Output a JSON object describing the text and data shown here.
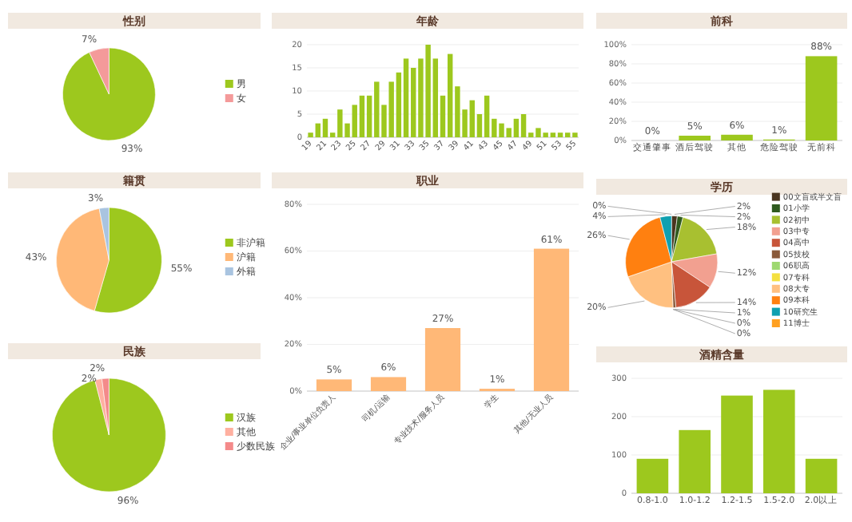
{
  "chart_data": [
    {
      "type": "pie",
      "title": "性别",
      "categories": [
        "男",
        "女"
      ],
      "values": [
        93,
        7
      ],
      "colors": [
        "#9dc81e",
        "#f49a9a"
      ],
      "value_labels": [
        "93%",
        "7%"
      ],
      "legend": "right"
    },
    {
      "type": "bar",
      "title": "年龄",
      "categories": [
        "19",
        null,
        "21",
        null,
        "23",
        null,
        "25",
        null,
        "27",
        null,
        "29",
        null,
        "31",
        null,
        "33",
        null,
        "35",
        null,
        "37",
        null,
        "39",
        null,
        "41",
        null,
        "43",
        null,
        "45",
        null,
        "47",
        null,
        "49",
        null,
        "51",
        null,
        "53",
        null,
        "55"
      ],
      "values": [
        1,
        3,
        4,
        1,
        6,
        3,
        7,
        9,
        9,
        12,
        7,
        12,
        14,
        17,
        15,
        17,
        20,
        17,
        9,
        18,
        11,
        6,
        8,
        5,
        9,
        4,
        3,
        2,
        4,
        5,
        1,
        2,
        1,
        1,
        1,
        1,
        1
      ],
      "color": "#9dc81e",
      "ylim": [
        0,
        20
      ],
      "yticks": [
        0,
        5,
        10,
        15,
        20
      ],
      "grid": "y"
    },
    {
      "type": "bar",
      "title": "前科",
      "categories": [
        "交通肇事",
        "酒后驾驶",
        "其他",
        "危险驾驶",
        "无前科"
      ],
      "values": [
        0,
        5,
        6,
        1,
        88
      ],
      "color": "#9dc81e",
      "value_labels": [
        "0%",
        "5%",
        "6%",
        "1%",
        "88%"
      ],
      "ylim": [
        0,
        100
      ],
      "yticks": [
        {
          "value": 0,
          "label": "0%"
        },
        {
          "value": 20,
          "label": "20%"
        },
        {
          "value": 40,
          "label": "40%"
        },
        {
          "value": 60,
          "label": "60%"
        },
        {
          "value": 80,
          "label": "80%"
        },
        {
          "value": 100,
          "label": "100%"
        }
      ],
      "grid": "y"
    },
    {
      "type": "pie",
      "title": "籍贯",
      "categories": [
        "非沪籍",
        "沪籍",
        "外籍"
      ],
      "values": [
        55,
        43,
        3
      ],
      "colors": [
        "#9dc81e",
        "#ffb877",
        "#a9c4e0"
      ],
      "value_labels": [
        "55%",
        "43%",
        "3%"
      ],
      "legend": "right"
    },
    {
      "type": "bar",
      "title": "职业",
      "categories": [
        "企业/事业单位负责人",
        "司机/运输",
        "专业技术/服务人员",
        "学生",
        "其他/无业人员"
      ],
      "values": [
        5,
        6,
        27,
        1,
        61
      ],
      "color": "#ffb877",
      "value_labels": [
        "5%",
        "6%",
        "27%",
        "1%",
        "61%"
      ],
      "ylim": [
        0,
        80
      ],
      "yticks": [
        {
          "value": 0,
          "label": "0%"
        },
        {
          "value": 20,
          "label": "20%"
        },
        {
          "value": 40,
          "label": "40%"
        },
        {
          "value": 60,
          "label": "60%"
        },
        {
          "value": 80,
          "label": "80%"
        }
      ],
      "grid": "y"
    },
    {
      "type": "pie",
      "title": "学历",
      "categories": [
        "00文盲或半文盲",
        "01小学",
        "02初中",
        "03中专",
        "04高中",
        "05技校",
        "06职高",
        "07专科",
        "08大专",
        "09本科",
        "10研究生",
        "11博士"
      ],
      "values": [
        2,
        2,
        18,
        12,
        14,
        1,
        0,
        0,
        20,
        26,
        4,
        0
      ],
      "colors": [
        "#4a3520",
        "#2f5a1e",
        "#a8c030",
        "#f2a090",
        "#c8553a",
        "#8a5a3a",
        "#9ed870",
        "#f4e040",
        "#ffc080",
        "#ff8010",
        "#10a0b0",
        "#ffa020"
      ],
      "value_labels": [
        "2%",
        "2%",
        "18%",
        "12%",
        "14%",
        "1%",
        "0%",
        "0%",
        "20%",
        "26%",
        "4%",
        "0%"
      ],
      "legend": "right"
    },
    {
      "type": "pie",
      "title": "民族",
      "categories": [
        "汉族",
        "其他",
        "少数民族"
      ],
      "values": [
        96,
        2,
        2
      ],
      "colors": [
        "#9dc81e",
        "#ffb0a0",
        "#f48a8a"
      ],
      "value_labels": [
        "96%",
        "2%",
        "2%"
      ],
      "legend": "right"
    },
    {
      "type": "bar",
      "title": "酒精含量",
      "categories": [
        "0.8-1.0",
        "1.0-1.2",
        "1.2-1.5",
        "1.5-2.0",
        "2.0以上"
      ],
      "values": [
        90,
        165,
        255,
        270,
        90
      ],
      "color": "#9dc81e",
      "ylim": [
        0,
        300
      ],
      "yticks": [
        0,
        100,
        200,
        300
      ],
      "grid": "y"
    }
  ]
}
